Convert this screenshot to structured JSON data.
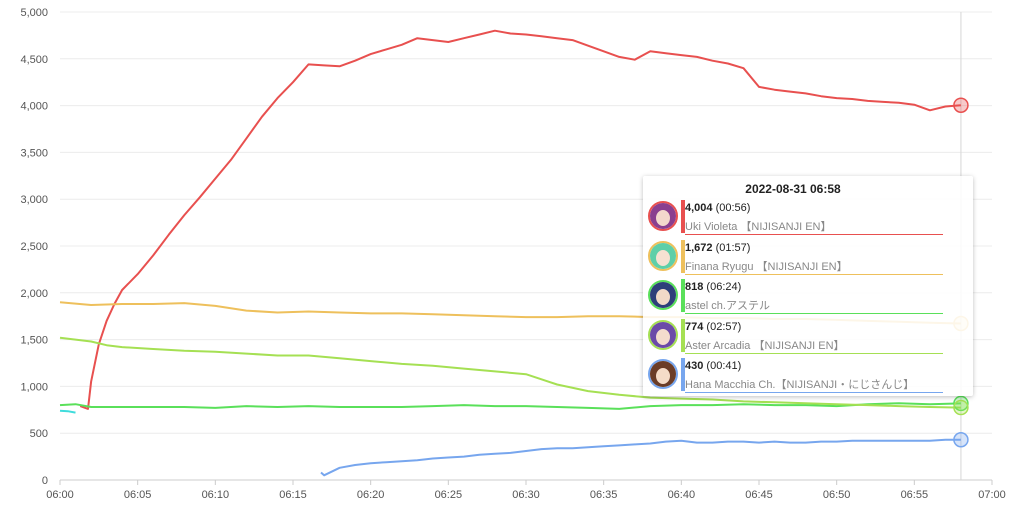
{
  "chart_data": {
    "type": "line",
    "x_ticks": [
      "06:00",
      "06:05",
      "06:10",
      "06:15",
      "06:20",
      "06:25",
      "06:30",
      "06:35",
      "06:40",
      "06:45",
      "06:50",
      "06:55",
      "07:00"
    ],
    "y_ticks": [
      "0",
      "500",
      "1,000",
      "1,500",
      "2,000",
      "2,500",
      "3,000",
      "3,500",
      "4,000",
      "4,500",
      "5,000"
    ],
    "ylim": [
      0,
      5000
    ],
    "xlim_minutes": [
      0,
      60
    ],
    "grid": true,
    "crosshair_minute": 58,
    "series": [
      {
        "name": "Uki Violeta 【NIJISANJI EN】",
        "color": "#e8504f",
        "points": [
          [
            1.3,
            790
          ],
          [
            1.8,
            760
          ],
          [
            2.0,
            1050
          ],
          [
            2.5,
            1450
          ],
          [
            3,
            1700
          ],
          [
            3.5,
            1880
          ],
          [
            4,
            2030
          ],
          [
            5,
            2200
          ],
          [
            6,
            2400
          ],
          [
            7,
            2620
          ],
          [
            8,
            2830
          ],
          [
            9,
            3020
          ],
          [
            10,
            3220
          ],
          [
            11,
            3420
          ],
          [
            12,
            3650
          ],
          [
            13,
            3880
          ],
          [
            14,
            4080
          ],
          [
            15,
            4250
          ],
          [
            16,
            4440
          ],
          [
            17,
            4430
          ],
          [
            18,
            4420
          ],
          [
            19,
            4480
          ],
          [
            20,
            4550
          ],
          [
            21,
            4600
          ],
          [
            22,
            4650
          ],
          [
            23,
            4720
          ],
          [
            24,
            4700
          ],
          [
            25,
            4680
          ],
          [
            26,
            4720
          ],
          [
            27,
            4760
          ],
          [
            28,
            4800
          ],
          [
            29,
            4770
          ],
          [
            30,
            4760
          ],
          [
            31,
            4740
          ],
          [
            32,
            4720
          ],
          [
            33,
            4700
          ],
          [
            34,
            4640
          ],
          [
            35,
            4580
          ],
          [
            36,
            4520
          ],
          [
            37,
            4490
          ],
          [
            38,
            4580
          ],
          [
            39,
            4560
          ],
          [
            40,
            4540
          ],
          [
            41,
            4520
          ],
          [
            42,
            4480
          ],
          [
            43,
            4450
          ],
          [
            44,
            4400
          ],
          [
            45,
            4200
          ],
          [
            46,
            4170
          ],
          [
            47,
            4150
          ],
          [
            48,
            4130
          ],
          [
            49,
            4100
          ],
          [
            50,
            4080
          ],
          [
            51,
            4070
          ],
          [
            52,
            4050
          ],
          [
            53,
            4040
          ],
          [
            54,
            4030
          ],
          [
            55,
            4010
          ],
          [
            56,
            3950
          ],
          [
            57,
            3990
          ],
          [
            58,
            4004
          ]
        ]
      },
      {
        "name": "Finana Ryugu 【NIJISANJI EN】",
        "color": "#eec05c",
        "points": [
          [
            0,
            1900
          ],
          [
            2,
            1870
          ],
          [
            4,
            1880
          ],
          [
            6,
            1880
          ],
          [
            8,
            1890
          ],
          [
            10,
            1860
          ],
          [
            12,
            1810
          ],
          [
            14,
            1790
          ],
          [
            16,
            1800
          ],
          [
            18,
            1790
          ],
          [
            20,
            1780
          ],
          [
            22,
            1780
          ],
          [
            24,
            1770
          ],
          [
            26,
            1760
          ],
          [
            28,
            1750
          ],
          [
            30,
            1740
          ],
          [
            32,
            1740
          ],
          [
            34,
            1750
          ],
          [
            36,
            1750
          ],
          [
            38,
            1740
          ],
          [
            40,
            1740
          ],
          [
            42,
            1730
          ],
          [
            44,
            1730
          ],
          [
            46,
            1720
          ],
          [
            48,
            1720
          ],
          [
            50,
            1710
          ],
          [
            52,
            1700
          ],
          [
            54,
            1690
          ],
          [
            56,
            1680
          ],
          [
            58,
            1672
          ]
        ]
      },
      {
        "name": "astel ch.アステル",
        "color": "#5ae05a",
        "points": [
          [
            0,
            800
          ],
          [
            1,
            810
          ],
          [
            2,
            780
          ],
          [
            4,
            780
          ],
          [
            6,
            780
          ],
          [
            8,
            780
          ],
          [
            10,
            770
          ],
          [
            12,
            790
          ],
          [
            14,
            780
          ],
          [
            16,
            790
          ],
          [
            18,
            780
          ],
          [
            20,
            780
          ],
          [
            22,
            780
          ],
          [
            24,
            790
          ],
          [
            26,
            800
          ],
          [
            28,
            790
          ],
          [
            30,
            790
          ],
          [
            32,
            780
          ],
          [
            34,
            770
          ],
          [
            36,
            760
          ],
          [
            38,
            790
          ],
          [
            40,
            800
          ],
          [
            42,
            800
          ],
          [
            44,
            810
          ],
          [
            46,
            800
          ],
          [
            48,
            800
          ],
          [
            50,
            790
          ],
          [
            52,
            810
          ],
          [
            54,
            820
          ],
          [
            56,
            810
          ],
          [
            58,
            818
          ]
        ]
      },
      {
        "name": "Aster Arcadia 【NIJISANJI EN】",
        "color": "#a5e053",
        "points": [
          [
            0,
            1520
          ],
          [
            2,
            1480
          ],
          [
            3,
            1440
          ],
          [
            4,
            1420
          ],
          [
            6,
            1400
          ],
          [
            8,
            1380
          ],
          [
            10,
            1370
          ],
          [
            12,
            1350
          ],
          [
            14,
            1330
          ],
          [
            16,
            1330
          ],
          [
            18,
            1300
          ],
          [
            20,
            1270
          ],
          [
            22,
            1240
          ],
          [
            24,
            1220
          ],
          [
            26,
            1190
          ],
          [
            28,
            1160
          ],
          [
            30,
            1130
          ],
          [
            32,
            1020
          ],
          [
            34,
            950
          ],
          [
            36,
            910
          ],
          [
            38,
            880
          ],
          [
            40,
            870
          ],
          [
            42,
            860
          ],
          [
            44,
            840
          ],
          [
            46,
            830
          ],
          [
            48,
            820
          ],
          [
            50,
            810
          ],
          [
            52,
            800
          ],
          [
            54,
            790
          ],
          [
            56,
            780
          ],
          [
            58,
            774
          ]
        ]
      },
      {
        "name": "Hana Macchia Ch.【NIJISANJI・にじさんじ】",
        "color": "#77a6ee",
        "points": [
          [
            16.8,
            80
          ],
          [
            17,
            50
          ],
          [
            18,
            130
          ],
          [
            19,
            160
          ],
          [
            20,
            180
          ],
          [
            21,
            190
          ],
          [
            22,
            200
          ],
          [
            23,
            210
          ],
          [
            24,
            230
          ],
          [
            25,
            240
          ],
          [
            26,
            250
          ],
          [
            27,
            270
          ],
          [
            28,
            280
          ],
          [
            29,
            290
          ],
          [
            30,
            310
          ],
          [
            31,
            330
          ],
          [
            32,
            340
          ],
          [
            33,
            340
          ],
          [
            34,
            350
          ],
          [
            35,
            360
          ],
          [
            36,
            370
          ],
          [
            37,
            380
          ],
          [
            38,
            390
          ],
          [
            39,
            410
          ],
          [
            40,
            420
          ],
          [
            41,
            400
          ],
          [
            42,
            400
          ],
          [
            43,
            410
          ],
          [
            44,
            410
          ],
          [
            45,
            400
          ],
          [
            46,
            410
          ],
          [
            47,
            400
          ],
          [
            48,
            400
          ],
          [
            49,
            410
          ],
          [
            50,
            410
          ],
          [
            51,
            420
          ],
          [
            52,
            420
          ],
          [
            53,
            420
          ],
          [
            54,
            420
          ],
          [
            55,
            420
          ],
          [
            56,
            420
          ],
          [
            57,
            430
          ],
          [
            58,
            430
          ]
        ]
      },
      {
        "color": "#3fdcdc",
        "points": [
          [
            0,
            740
          ],
          [
            0.5,
            735
          ],
          [
            1,
            720
          ]
        ]
      }
    ]
  },
  "tooltip": {
    "title": "2022-08-31 06:58",
    "entries": [
      {
        "value": "4,004",
        "extra": "(00:56)",
        "name": "Uki Violeta 【NIJISANJI EN】",
        "color": "#e8504f",
        "avatar_hair": "#8a3f8f",
        "avatar_skin": "#f3d8cc"
      },
      {
        "value": "1,672",
        "extra": "(01:57)",
        "name": "Finana Ryugu 【NIJISANJI EN】",
        "color": "#eec05c",
        "avatar_hair": "#5fcfa8",
        "avatar_skin": "#f6e1d2"
      },
      {
        "value": "818",
        "extra": "(06:24)",
        "name": "astel ch.アステル",
        "color": "#5ae05a",
        "avatar_hair": "#2e3f7a",
        "avatar_skin": "#f1d9c8"
      },
      {
        "value": "774",
        "extra": "(02:57)",
        "name": "Aster Arcadia 【NIJISANJI EN】",
        "color": "#a5e053",
        "avatar_hair": "#6b4aa8",
        "avatar_skin": "#f4dccd"
      },
      {
        "value": "430",
        "extra": "(00:41)",
        "name": "Hana Macchia Ch.【NIJISANJI・にじさんじ】",
        "color": "#77a6ee",
        "avatar_hair": "#6b3d28",
        "avatar_skin": "#f5dcc8"
      }
    ]
  }
}
